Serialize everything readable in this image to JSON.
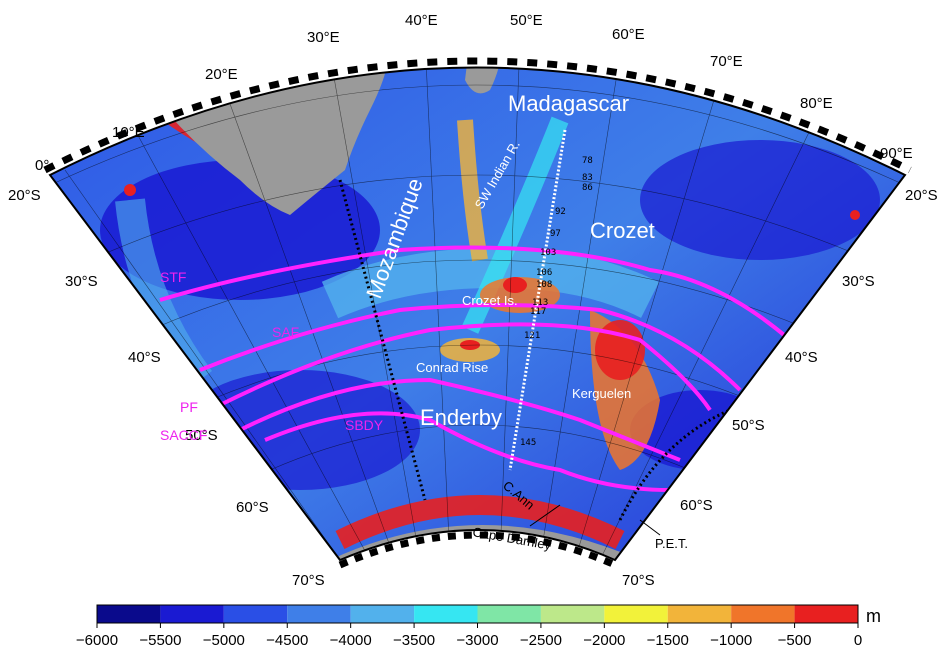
{
  "units_label": "m",
  "colorbar": {
    "ticks": [
      "−6000",
      "−5500",
      "−5000",
      "−4500",
      "−4000",
      "−3500",
      "−3000",
      "−2500",
      "−2000",
      "−1500",
      "−1000",
      "−500",
      "0"
    ],
    "colors": [
      "#0a0a8c",
      "#1a1ad2",
      "#2a4fe6",
      "#3f7fe8",
      "#52b1ec",
      "#36e6f2",
      "#7fe6a6",
      "#bde88a",
      "#f2f23a",
      "#f2b43a",
      "#f0752a",
      "#e82020",
      "#b81010"
    ]
  },
  "longitude_labels": [
    "0°",
    "10°E",
    "20°E",
    "30°E",
    "40°E",
    "50°E",
    "60°E",
    "70°E",
    "80°E",
    "90°E"
  ],
  "latitude_labels_left": [
    "20°S",
    "30°S",
    "40°S",
    "50°S",
    "60°S",
    "70°S"
  ],
  "latitude_labels_right": [
    "20°S",
    "30°S",
    "40°S",
    "50°S",
    "60°S",
    "70°S"
  ],
  "regions": {
    "madagascar": "Madagascar",
    "mozambique": "Mozambique",
    "crozet": "Crozet",
    "enderby": "Enderby",
    "sw_indian_ridge": "SW Indian R.",
    "crozet_is": "Crozet Is.",
    "conrad_rise": "Conrad Rise",
    "kerguelen": "Kerguelen"
  },
  "fronts": {
    "stf": "STF",
    "saf": "SAF",
    "pf": "PF",
    "saccf": "SACCF",
    "sbdy": "SBDY"
  },
  "locations": {
    "c_ann": "C.Ann",
    "cape_darnley": "Cape Darnley",
    "pet": "P.E.T."
  },
  "track_numbers": [
    "78",
    "83",
    "86",
    "92",
    "97",
    "103",
    "106",
    "108",
    "113",
    "117",
    "121",
    "145"
  ],
  "colors": {
    "front_line": "#ff22ff",
    "land": "#9a9a9a",
    "background": "#ffffff"
  }
}
